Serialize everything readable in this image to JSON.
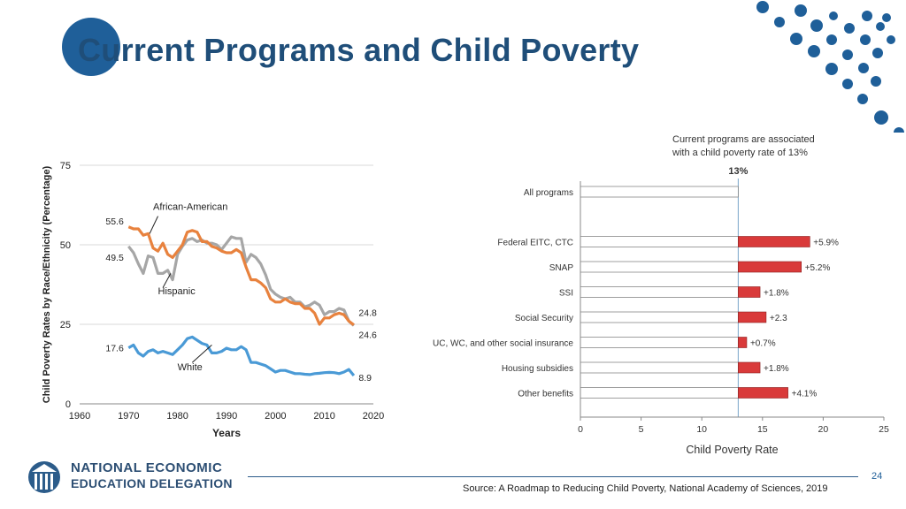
{
  "slide": {
    "title": "Current Programs and Child Poverty",
    "page_number": "24",
    "source": "Source: A Roadmap to Reducing Child Poverty, National Academy of Sciences, 2019"
  },
  "logo": {
    "line1": "NATIONAL ECONOMIC",
    "line2": "EDUCATION DELEGATION"
  },
  "colors": {
    "title": "#1f4e79",
    "accent_blue": "#1f5f99",
    "african_american": "#e8823e",
    "hispanic": "#a6a6a6",
    "white": "#4a9ad6",
    "bar_red": "#d93a3a"
  },
  "chart_data": [
    {
      "type": "line",
      "ylabel": "Child Poverty Rates by Race/Ethnicity (Percentage)",
      "xlabel": "Years",
      "xlim": [
        1960,
        2020
      ],
      "ylim": [
        0,
        75
      ],
      "xticks": [
        "1960",
        "1970",
        "1980",
        "1990",
        "2000",
        "2010",
        "2020"
      ],
      "yticks": [
        "0",
        "25",
        "50",
        "75"
      ],
      "series": [
        {
          "name": "African-American",
          "label": "African-American",
          "start_label": "55.6",
          "end_label": "24.8",
          "x": [
            1970,
            1971,
            1972,
            1973,
            1974,
            1975,
            1976,
            1977,
            1978,
            1979,
            1980,
            1981,
            1982,
            1983,
            1984,
            1985,
            1986,
            1987,
            1988,
            1989,
            1990,
            1991,
            1992,
            1993,
            1994,
            1995,
            1996,
            1997,
            1998,
            1999,
            2000,
            2001,
            2002,
            2003,
            2004,
            2005,
            2006,
            2007,
            2008,
            2009,
            2010,
            2011,
            2012,
            2013,
            2014,
            2015,
            2016
          ],
          "y": [
            55.6,
            55,
            55,
            53,
            53.5,
            49,
            48,
            50.5,
            47,
            46,
            48,
            50,
            54,
            54.5,
            54,
            51,
            51,
            49.5,
            49,
            48,
            47.5,
            47.5,
            48.5,
            47.5,
            43,
            39,
            39,
            38,
            36.5,
            33,
            32,
            32,
            33,
            32,
            31.5,
            31.5,
            30,
            30,
            28.5,
            25,
            27,
            27,
            28,
            28.5,
            28,
            26,
            24.8
          ]
        },
        {
          "name": "Hispanic",
          "label": "Hispanic",
          "start_label": "49.5",
          "end_label": "24.6",
          "x": [
            1970,
            1971,
            1972,
            1973,
            1974,
            1975,
            1976,
            1977,
            1978,
            1979,
            1980,
            1981,
            1982,
            1983,
            1984,
            1985,
            1986,
            1987,
            1988,
            1989,
            1990,
            1991,
            1992,
            1993,
            1994,
            1995,
            1996,
            1997,
            1998,
            1999,
            2000,
            2001,
            2002,
            2003,
            2004,
            2005,
            2006,
            2007,
            2008,
            2009,
            2010,
            2011,
            2012,
            2013,
            2014,
            2015,
            2016
          ],
          "y": [
            49.5,
            47.5,
            44,
            41,
            46.5,
            46,
            41,
            41,
            42,
            39,
            47,
            49.5,
            51.5,
            52,
            51,
            51.5,
            50.5,
            50.5,
            50,
            48.5,
            50.5,
            52.5,
            52,
            52,
            44.5,
            47,
            46,
            44,
            40.5,
            36,
            34.5,
            33.5,
            33,
            33.5,
            32,
            32,
            30.5,
            31,
            32,
            31,
            28,
            29,
            29,
            30,
            29.5,
            26,
            24.6
          ]
        },
        {
          "name": "White",
          "label": "White",
          "start_label": "17.6",
          "end_label": "8.9",
          "x": [
            1970,
            1971,
            1972,
            1973,
            1974,
            1975,
            1976,
            1977,
            1978,
            1979,
            1980,
            1981,
            1982,
            1983,
            1984,
            1985,
            1986,
            1987,
            1988,
            1989,
            1990,
            1991,
            1992,
            1993,
            1994,
            1995,
            1996,
            1997,
            1998,
            1999,
            2000,
            2001,
            2002,
            2003,
            2004,
            2005,
            2006,
            2007,
            2008,
            2009,
            2010,
            2011,
            2012,
            2013,
            2014,
            2015,
            2016
          ],
          "y": [
            17.6,
            18.5,
            16,
            15,
            16.5,
            17,
            16,
            16.5,
            16,
            15.5,
            17,
            18.5,
            20.5,
            21,
            20,
            19,
            18.5,
            16,
            16,
            16.5,
            17.5,
            17,
            17,
            18,
            17,
            13,
            13,
            12.5,
            12,
            11,
            10,
            10.5,
            10.5,
            10,
            9.5,
            9.5,
            9.3,
            9.2,
            9.5,
            9.6,
            9.8,
            9.9,
            9.8,
            9.5,
            10,
            10.8,
            8.9
          ]
        }
      ]
    },
    {
      "type": "bar",
      "orientation": "horizontal",
      "annotation_line1": "Current programs are associated",
      "annotation_line2": "with a child poverty rate of 13%",
      "reference_value_label": "13%",
      "xlabel": "Child Poverty Rate",
      "xlim": [
        0,
        25
      ],
      "xticks": [
        "0",
        "5",
        "10",
        "15",
        "20",
        "25"
      ],
      "baseline": 13,
      "categories": [
        "All programs",
        "Federal EITC, CTC",
        "SNAP",
        "SSI",
        "Social Security",
        "UC, WC, and other social insurance",
        "Housing subsidies",
        "Other benefits"
      ],
      "increments": [
        0,
        5.9,
        5.2,
        1.8,
        2.3,
        0.7,
        1.8,
        4.1
      ],
      "labels": [
        "",
        "+5.9%",
        "+5.2%",
        "+1.8%",
        "+2.3",
        "+0.7%",
        "+1.8%",
        "+4.1%"
      ]
    }
  ]
}
